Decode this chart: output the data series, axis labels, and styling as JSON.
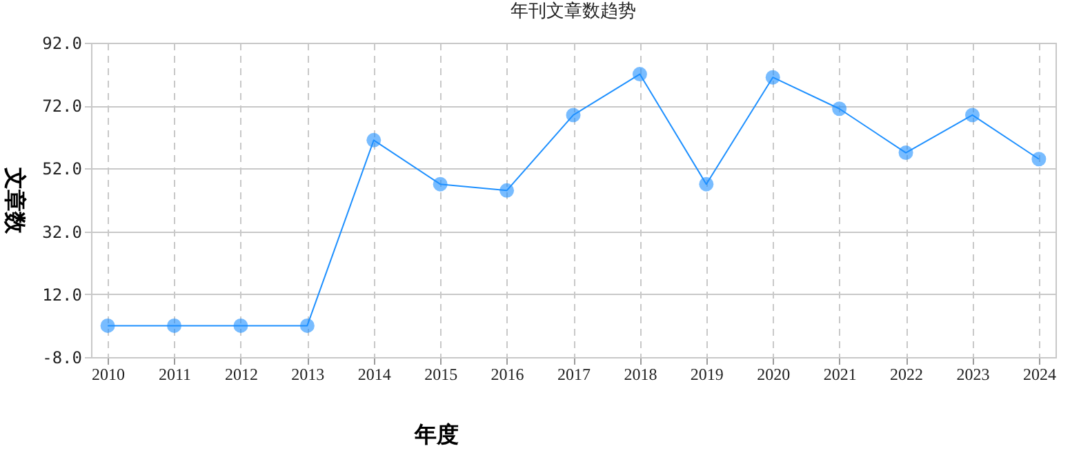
{
  "chart_data": {
    "type": "line",
    "title": "年刊文章数趋势",
    "xlabel": "年度",
    "ylabel": "文章数",
    "categories": [
      "2010",
      "2011",
      "2012",
      "2013",
      "2014",
      "2015",
      "2016",
      "2017",
      "2018",
      "2019",
      "2020",
      "2021",
      "2022",
      "2023",
      "2024"
    ],
    "series": [
      {
        "color": "#1e90ff",
        "values": [
          2,
          2,
          2,
          2,
          61,
          47,
          45,
          69,
          82,
          47,
          81,
          71,
          57,
          69,
          55
        ]
      }
    ],
    "ylim": [
      -8,
      92
    ],
    "yticks": [
      {
        "value": -8,
        "label": "-8.0"
      },
      {
        "value": 12,
        "label": "12.0"
      },
      {
        "value": 32,
        "label": "32.0"
      },
      {
        "value": 52,
        "label": "52.0"
      },
      {
        "value": 72,
        "label": "72.0"
      },
      {
        "value": 92,
        "label": "92.0"
      }
    ],
    "grid": true,
    "marker": "circle",
    "line_style": "solid"
  }
}
